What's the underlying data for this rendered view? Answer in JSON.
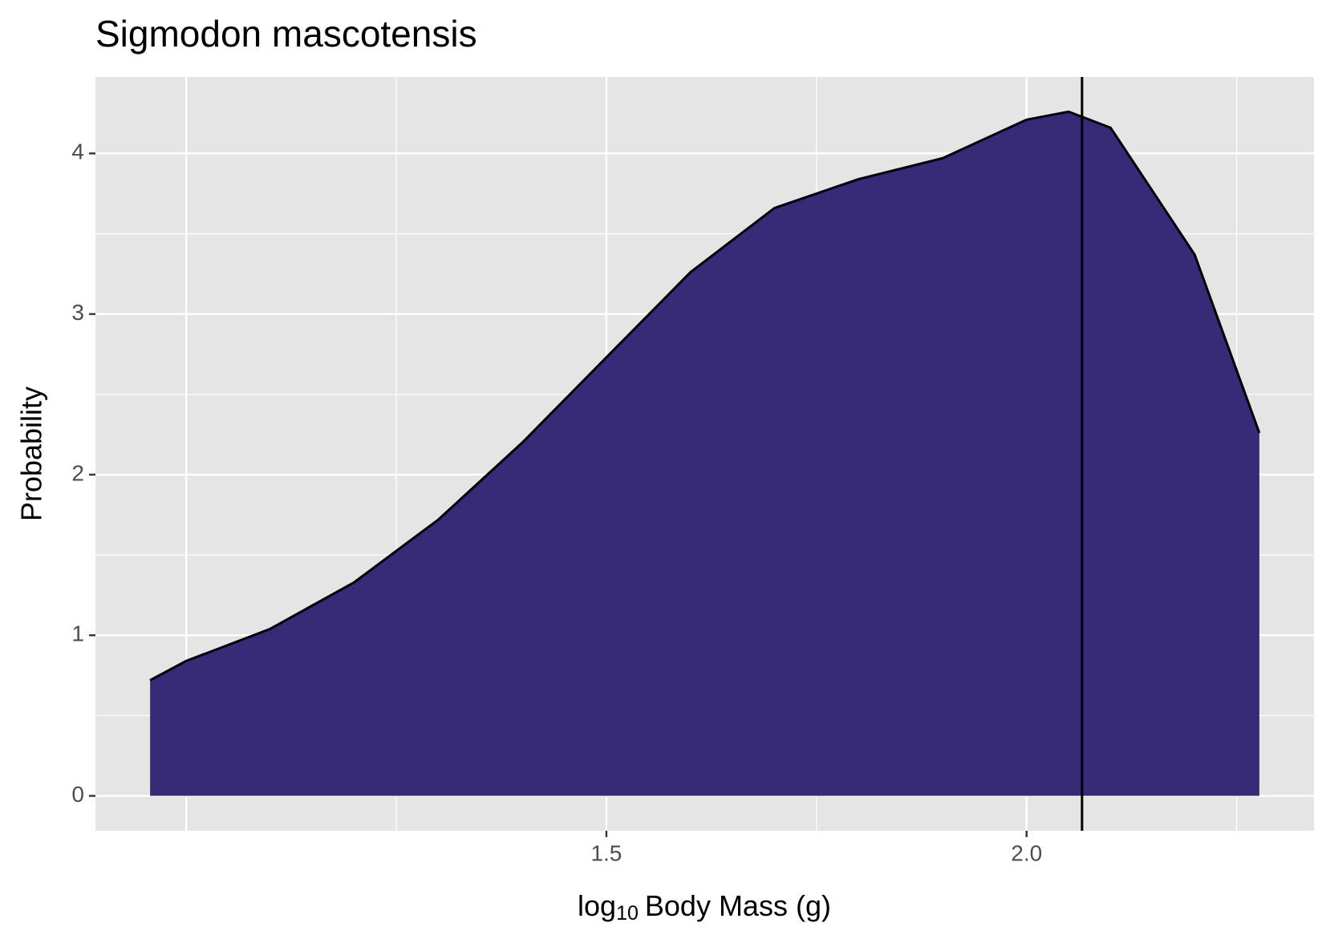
{
  "chart_data": {
    "type": "area",
    "title": "Sigmodon mascotensis",
    "y_label": "Probability",
    "x_label": {
      "base": "log",
      "subscript": "10",
      "rest": "Body Mass (g)"
    },
    "series": [
      {
        "color": "#372a77",
        "x": [
          0.957,
          1.0,
          1.1,
          1.2,
          1.3,
          1.4,
          1.5,
          1.6,
          1.7,
          1.8,
          1.9,
          2.0,
          2.05,
          2.1,
          2.2,
          2.277
        ],
        "values": [
          0.72,
          0.84,
          1.04,
          1.33,
          1.72,
          2.2,
          2.73,
          3.26,
          3.66,
          3.84,
          3.97,
          4.21,
          4.26,
          4.16,
          3.37,
          2.26
        ]
      }
    ],
    "vline": 2.066,
    "xlim": [
      0.892,
      2.342
    ],
    "ylim": [
      -0.217,
      4.476
    ],
    "xticks": [
      1.5,
      {
        "value": 2.0,
        "label": "2.0"
      }
    ],
    "x_grid": [
      1.0,
      1.5,
      2.0
    ],
    "x_minor_grid": [
      1.25,
      1.75,
      2.25
    ],
    "yticks": [
      0,
      1,
      2,
      3,
      4
    ],
    "y_minor_grid": [
      0.5,
      1.5,
      2.5,
      3.5
    ],
    "grid": true
  }
}
